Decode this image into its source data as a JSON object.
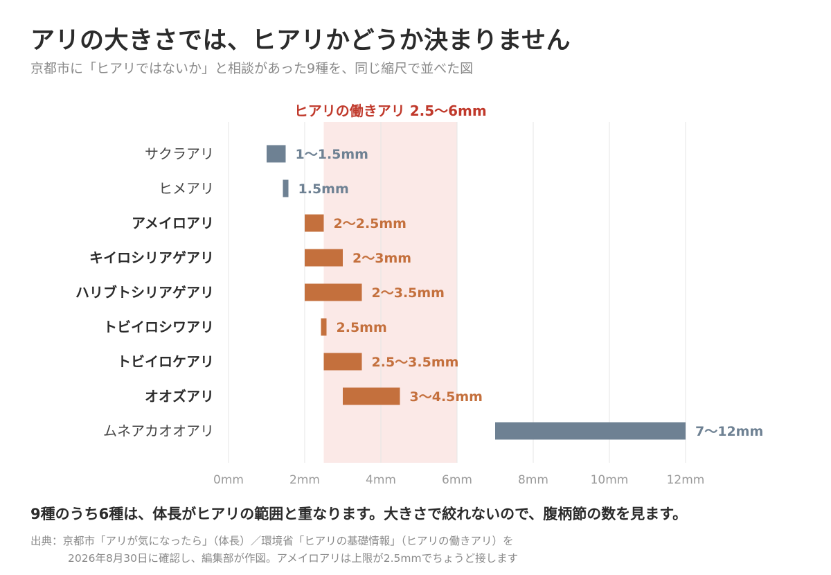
{
  "title": "アリの大きさでは、ヒアリかどうか決まりません",
  "subtitle": "京都市に「ヒアリではないか」と相談があった9種を、同じ縮尺で並べた図",
  "takeaway": "9種のうち6種は、体長がヒアリの範囲と重なります。大きさで絞れないので、腹柄節の数を見ます。",
  "source": {
    "line1": "出典：京都市「アリが気になったら」（体長）／環境省「ヒアリの基礎情報」（ヒアリの働きアリ）を",
    "line2": "2026年8月30日に確認し、編集部が作図。アメイロアリは上限が2.5mmでちょうど接します"
  },
  "colors": {
    "overlap": "#c4703d",
    "no_overlap": "#6e8193",
    "band": "#fbe9e7",
    "band_label": "#c0392b",
    "grid": "#e6e6e6",
    "axis_text": "#9a9a9a"
  },
  "chart_data": {
    "type": "bar",
    "orientation": "horizontal",
    "xlabel": "",
    "xlim": [
      0,
      12
    ],
    "x_ticks": [
      0,
      2,
      4,
      6,
      8,
      10,
      12
    ],
    "x_tick_labels": [
      "0mm",
      "2mm",
      "4mm",
      "6mm",
      "8mm",
      "10mm",
      "12mm"
    ],
    "grid": true,
    "reference_band": {
      "label": "ヒアリの働きアリ 2.5〜6mm",
      "min": 2.5,
      "max": 6
    },
    "series": [
      {
        "name": "サクラアリ",
        "min": 1,
        "max": 1.5,
        "label": "1〜1.5mm",
        "overlaps": false
      },
      {
        "name": "ヒメアリ",
        "min": 1.5,
        "max": 1.5,
        "label": "1.5mm",
        "overlaps": false
      },
      {
        "name": "アメイロアリ",
        "min": 2,
        "max": 2.5,
        "label": "2〜2.5mm",
        "overlaps": true
      },
      {
        "name": "キイロシリアゲアリ",
        "min": 2,
        "max": 3,
        "label": "2〜3mm",
        "overlaps": true
      },
      {
        "name": "ハリブトシリアゲアリ",
        "min": 2,
        "max": 3.5,
        "label": "2〜3.5mm",
        "overlaps": true
      },
      {
        "name": "トビイロシワアリ",
        "min": 2.5,
        "max": 2.5,
        "label": "2.5mm",
        "overlaps": true
      },
      {
        "name": "トビイロケアリ",
        "min": 2.5,
        "max": 3.5,
        "label": "2.5〜3.5mm",
        "overlaps": true
      },
      {
        "name": "オオズアリ",
        "min": 3,
        "max": 4.5,
        "label": "3〜4.5mm",
        "overlaps": true
      },
      {
        "name": "ムネアカオオアリ",
        "min": 7,
        "max": 12,
        "label": "7〜12mm",
        "overlaps": false
      }
    ]
  }
}
